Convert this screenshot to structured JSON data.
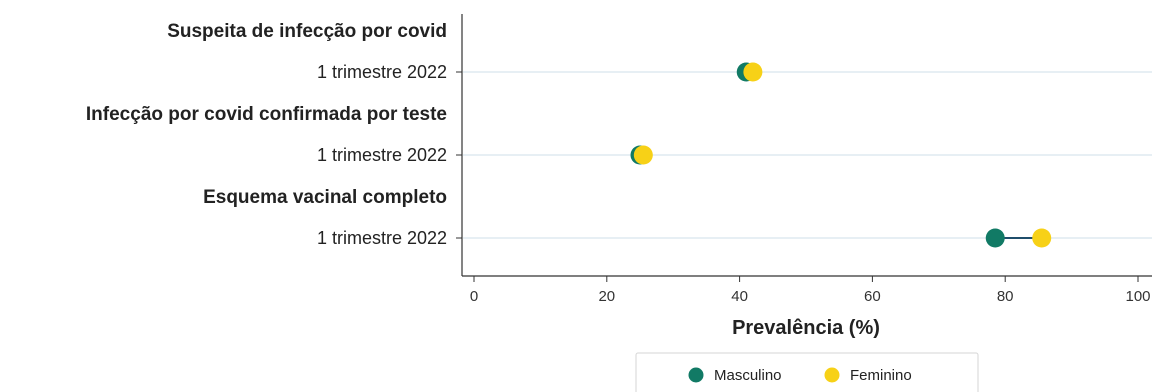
{
  "chart_data": {
    "type": "scatter",
    "subtype": "dumbbell",
    "xlabel": "Prevalência (%)",
    "xlim": [
      0,
      100
    ],
    "xticks": [
      0,
      20,
      40,
      60,
      80,
      100
    ],
    "groups": [
      {
        "label": "Suspeita de infecção por covid",
        "rows": [
          {
            "label": "1 trimestre 2022",
            "values": {
              "Masculino": 41,
              "Feminino": 42
            }
          }
        ]
      },
      {
        "label": "Infecção por covid confirmada por teste",
        "rows": [
          {
            "label": "1 trimestre 2022",
            "values": {
              "Masculino": 25,
              "Feminino": 25.5
            }
          }
        ]
      },
      {
        "label": "Esquema vacinal completo",
        "rows": [
          {
            "label": "1 trimestre 2022",
            "values": {
              "Masculino": 78.5,
              "Feminino": 85.5
            }
          }
        ]
      }
    ],
    "series": [
      {
        "name": "Masculino",
        "color": "#117a65"
      },
      {
        "name": "Feminino",
        "color": "#f7d117"
      }
    ],
    "legend": {
      "position": "bottom"
    },
    "grid": {
      "horizontal": true,
      "vertical": false,
      "color": "#dfeaf1"
    },
    "connector_color": "#1f4e6b"
  }
}
